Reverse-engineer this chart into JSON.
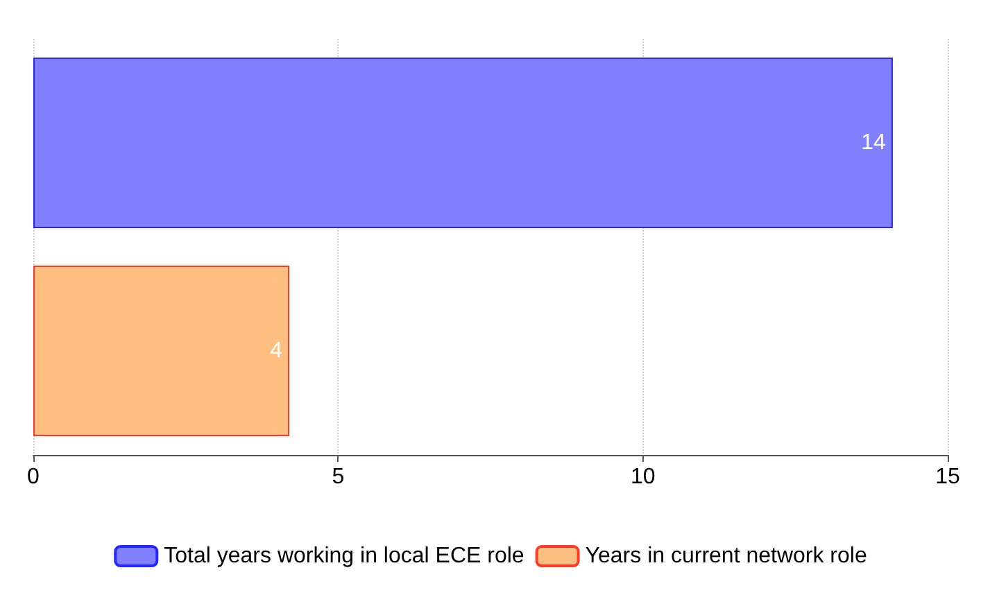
{
  "chart_data": {
    "type": "bar",
    "orientation": "horizontal",
    "categories": [
      null,
      null
    ],
    "series": [
      {
        "name": "Total years working in local ECE role",
        "color": "#8080ff",
        "values": [
          14.1,
          null
        ],
        "value_labels": [
          "14",
          null
        ]
      },
      {
        "name": "Years in current network role",
        "color": "#ffbf80",
        "values": [
          null,
          4.2
        ],
        "value_labels": [
          null,
          "4"
        ]
      }
    ],
    "xlim": [
      0,
      15
    ],
    "xticks": [
      0,
      5,
      10,
      15
    ],
    "grid": "x",
    "legend": "bottom"
  }
}
